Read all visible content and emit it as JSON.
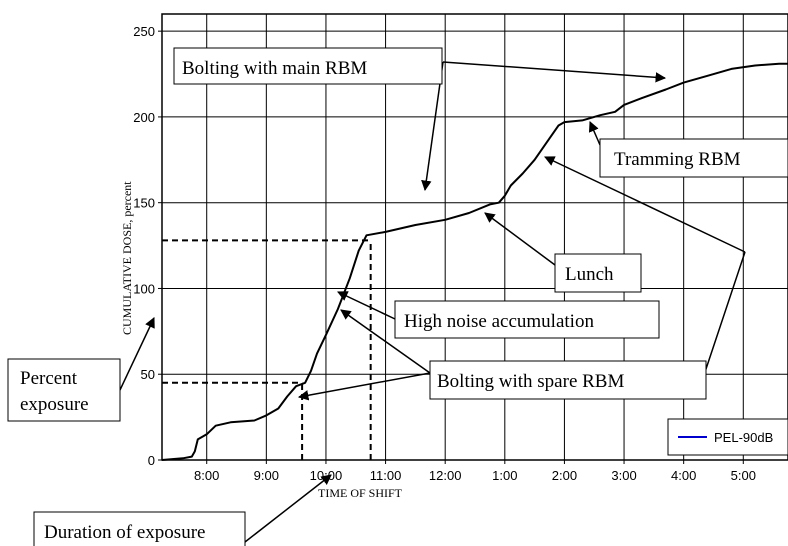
{
  "chart_data": {
    "type": "line",
    "xlabel": "TIME OF SHIFT",
    "ylabel": "CUMULATIVE DOSE, percent",
    "x_unit": "hours (12-hour clock across noon)",
    "xlim": [
      7.25,
      17.75
    ],
    "ylim": [
      0,
      260
    ],
    "grid": true,
    "x_ticks": [
      "8:00",
      "9:00",
      "10:00",
      "11:00",
      "12:00",
      "1:00",
      "2:00",
      "3:00",
      "4:00",
      "5:00"
    ],
    "x_tick_values": [
      8,
      9,
      10,
      11,
      12,
      13,
      14,
      15,
      16,
      17
    ],
    "y_ticks": [
      0,
      50,
      100,
      150,
      200,
      250
    ],
    "legend": {
      "placement": "bottom-right",
      "entries": [
        {
          "name": "PEL-90dB",
          "color": "#0000cc"
        }
      ]
    },
    "series": [
      {
        "name": "PEL-90dB",
        "color": "#000000",
        "points": [
          [
            7.25,
            0
          ],
          [
            7.6,
            1
          ],
          [
            7.75,
            2
          ],
          [
            7.8,
            5
          ],
          [
            7.85,
            12
          ],
          [
            8.0,
            15
          ],
          [
            8.15,
            20
          ],
          [
            8.4,
            22
          ],
          [
            8.8,
            23
          ],
          [
            9.0,
            26
          ],
          [
            9.2,
            30
          ],
          [
            9.35,
            37
          ],
          [
            9.5,
            43
          ],
          [
            9.65,
            45
          ],
          [
            9.75,
            52
          ],
          [
            9.85,
            62
          ],
          [
            10.0,
            73
          ],
          [
            10.2,
            88
          ],
          [
            10.4,
            106
          ],
          [
            10.55,
            122
          ],
          [
            10.68,
            131
          ],
          [
            11.0,
            133
          ],
          [
            11.5,
            137
          ],
          [
            12.0,
            140
          ],
          [
            12.4,
            144
          ],
          [
            12.75,
            149
          ],
          [
            12.9,
            150
          ],
          [
            13.0,
            154
          ],
          [
            13.1,
            160
          ],
          [
            13.3,
            167
          ],
          [
            13.5,
            175
          ],
          [
            13.7,
            185
          ],
          [
            13.9,
            195
          ],
          [
            14.0,
            197
          ],
          [
            14.3,
            198
          ],
          [
            14.6,
            201
          ],
          [
            14.85,
            203
          ],
          [
            15.0,
            207
          ],
          [
            15.3,
            211
          ],
          [
            15.7,
            216
          ],
          [
            16.0,
            220
          ],
          [
            16.4,
            224
          ],
          [
            16.8,
            228
          ],
          [
            17.2,
            230
          ],
          [
            17.6,
            231
          ],
          [
            17.75,
            231
          ]
        ]
      }
    ],
    "reference_lines": [
      {
        "kind": "h",
        "y": 45,
        "x_from": 7.25,
        "x_to": 9.6
      },
      {
        "kind": "v",
        "x": 9.6,
        "y_from": 0,
        "y_to": 45
      },
      {
        "kind": "h",
        "y": 128,
        "x_from": 7.25,
        "x_to": 10.75
      },
      {
        "kind": "v",
        "x": 10.75,
        "y_from": 0,
        "y_to": 128
      }
    ],
    "annotations": [
      "Bolting with main RBM",
      "Tramming RBM",
      "Lunch",
      "High noise accumulation",
      "Bolting with spare RBM",
      "Percent exposure",
      "Duration of exposure"
    ]
  }
}
